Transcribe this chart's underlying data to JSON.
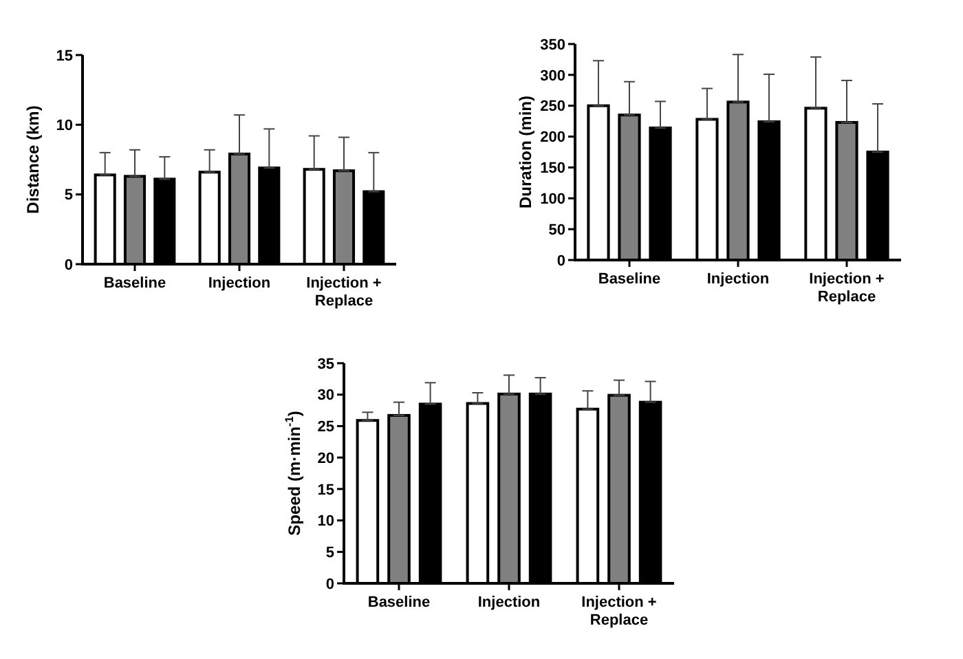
{
  "chart_data": [
    {
      "type": "bar",
      "ylabel": "Distance (km)",
      "categories": [
        "Baseline",
        "Injection",
        "Injection + Replace"
      ],
      "ylim": [
        0,
        15
      ],
      "yticks": [
        0,
        5,
        10,
        15
      ],
      "series": [
        {
          "color": "#ffffff",
          "values": [
            6.4,
            6.6,
            6.8
          ],
          "errors": [
            [
              6.4,
              8.0
            ],
            [
              6.6,
              8.2
            ],
            [
              6.8,
              9.2
            ]
          ]
        },
        {
          "color": "#808080",
          "values": [
            6.3,
            7.9,
            6.7
          ],
          "errors": [
            [
              6.3,
              8.2
            ],
            [
              7.9,
              10.7
            ],
            [
              6.7,
              9.1
            ]
          ]
        },
        {
          "color": "#000000",
          "values": [
            6.1,
            6.9,
            5.2
          ],
          "errors": [
            [
              6.1,
              7.7
            ],
            [
              6.9,
              9.7
            ],
            [
              5.2,
              8.0
            ]
          ]
        }
      ]
    },
    {
      "type": "bar",
      "ylabel": "Duration (min)",
      "categories": [
        "Baseline",
        "Injection",
        "Injection + Replace"
      ],
      "ylim": [
        0,
        350
      ],
      "yticks": [
        0,
        50,
        100,
        150,
        200,
        250,
        300,
        350
      ],
      "series": [
        {
          "color": "#ffffff",
          "values": [
            250,
            228,
            246
          ],
          "errors": [
            [
              250,
              323
            ],
            [
              228,
              278
            ],
            [
              246,
              329
            ]
          ]
        },
        {
          "color": "#808080",
          "values": [
            235,
            256,
            223
          ],
          "errors": [
            [
              235,
              289
            ],
            [
              256,
              333
            ],
            [
              223,
              291
            ]
          ]
        },
        {
          "color": "#000000",
          "values": [
            214,
            224,
            175
          ],
          "errors": [
            [
              214,
              257
            ],
            [
              224,
              301
            ],
            [
              175,
              253
            ]
          ]
        }
      ]
    },
    {
      "type": "bar",
      "ylabel": "Speed (m·min$^{-1}$)",
      "categories": [
        "Baseline",
        "Injection",
        "Injection + Replace"
      ],
      "ylim": [
        0,
        35
      ],
      "yticks": [
        0,
        5,
        10,
        15,
        20,
        25,
        30,
        35
      ],
      "series": [
        {
          "color": "#ffffff",
          "values": [
            25.9,
            28.6,
            27.7
          ],
          "errors": [
            [
              25.9,
              27.2
            ],
            [
              28.6,
              30.3
            ],
            [
              27.7,
              30.6
            ]
          ]
        },
        {
          "color": "#808080",
          "values": [
            26.7,
            30.1,
            29.9
          ],
          "errors": [
            [
              26.7,
              28.8
            ],
            [
              30.1,
              33.1
            ],
            [
              29.9,
              32.3
            ]
          ]
        },
        {
          "color": "#000000",
          "values": [
            28.5,
            30.1,
            28.8
          ],
          "errors": [
            [
              28.5,
              31.9
            ],
            [
              30.1,
              32.7
            ],
            [
              28.8,
              32.1
            ]
          ]
        }
      ]
    }
  ]
}
